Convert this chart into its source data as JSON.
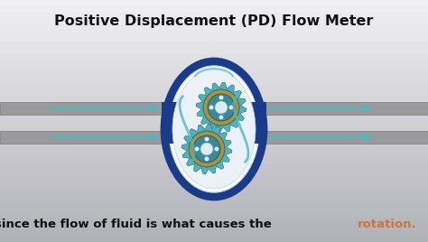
{
  "title": "Positive Displacement (PD) Flow Meter",
  "subtitle_plain": "since the flow of fluid is what causes the ",
  "subtitle_highlight": "rotation.",
  "bg_top": "#f0f0f0",
  "bg_bottom": "#c0c0c0",
  "title_color": "#111111",
  "subtitle_color": "#111111",
  "highlight_color": "#c8783c",
  "pipe_color": "#9a9a9a",
  "pipe_border": "#7a7a7a",
  "arrow_color": "#4ab8c5",
  "oval_outer_color": "#1a3a8a",
  "oval_white": "#ffffff",
  "oval_inner_color": "#e8eef5",
  "connector_color": "#1a3a8a",
  "gear_teal": "#4ab5c0",
  "gear_dark": "#3a5060",
  "gear_gold": "#b8902a",
  "gear_center": "#ddeaf0",
  "fig_w": 4.74,
  "fig_h": 2.68,
  "dpi": 100
}
